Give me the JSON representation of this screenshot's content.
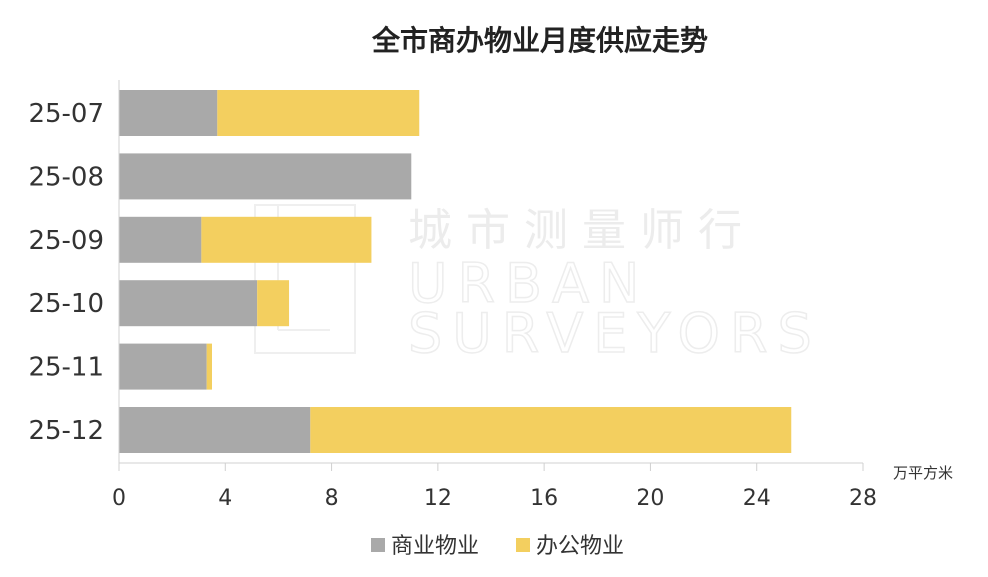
{
  "chart_data": {
    "type": "bar",
    "orientation": "horizontal",
    "stacked": true,
    "title": "全市商办物业月度供应走势",
    "unit": "万平方米",
    "categories": [
      "25-07",
      "25-08",
      "25-09",
      "25-10",
      "25-11",
      "25-12"
    ],
    "series": [
      {
        "name": "商业物业",
        "color": "#a9a9a9",
        "values": [
          3.7,
          11.0,
          3.1,
          5.2,
          3.3,
          7.2
        ]
      },
      {
        "name": "办公物业",
        "color": "#f3cf5f",
        "values": [
          7.6,
          0,
          6.4,
          1.2,
          0.2,
          18.1
        ]
      }
    ],
    "xlim": [
      0,
      28
    ],
    "xticks": [
      0,
      4,
      8,
      12,
      16,
      20,
      24,
      28
    ],
    "grid": false,
    "legend_position": "bottom",
    "watermark": {
      "cn": "城市测量师行",
      "en_line1": "URBAN",
      "en_line2": "SURVEYORS"
    }
  }
}
